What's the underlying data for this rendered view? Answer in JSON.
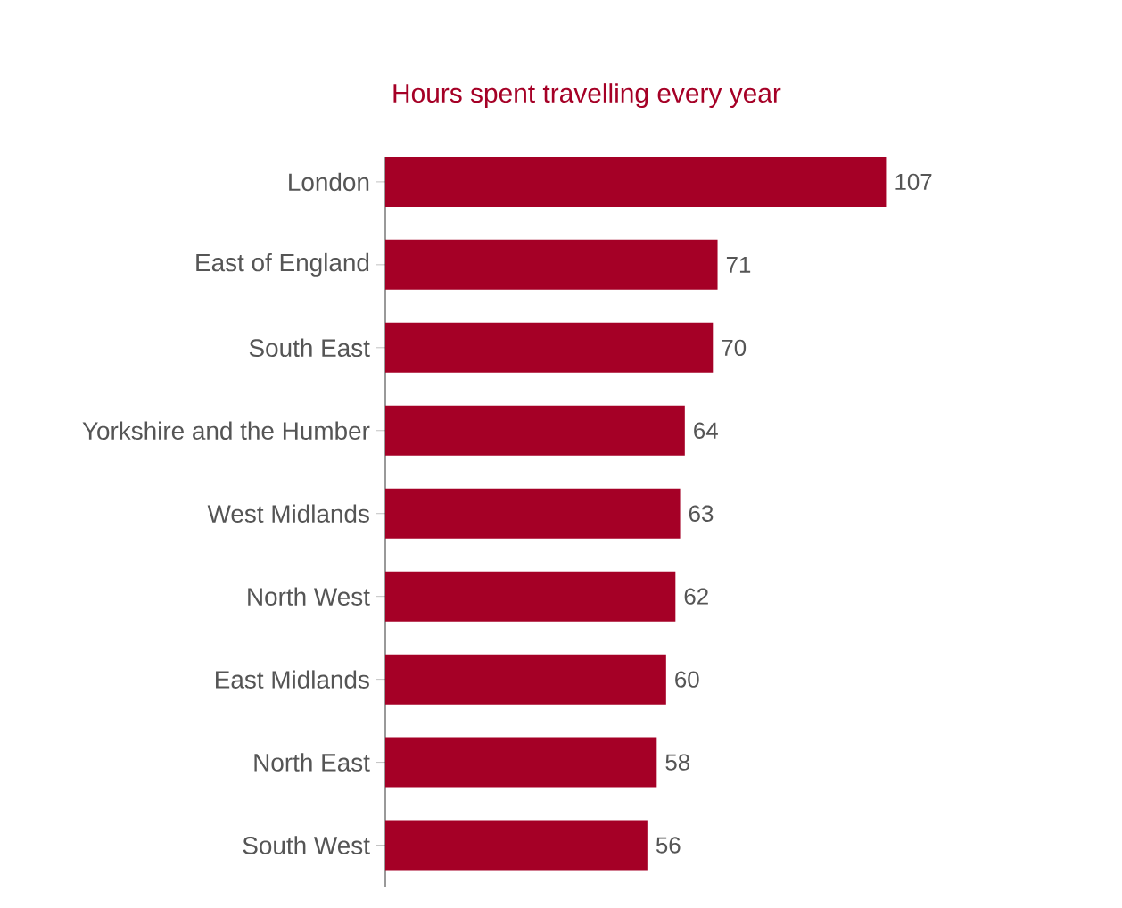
{
  "chart_data": {
    "type": "bar",
    "orientation": "horizontal",
    "title": "Hours spent travelling every year",
    "categories": [
      "London",
      "East of England",
      "South East",
      "Yorkshire and the Humber",
      "West Midlands",
      "North West",
      "East Midlands",
      "North East",
      "South West"
    ],
    "values": [
      107,
      71,
      70,
      64,
      63,
      62,
      60,
      58,
      56
    ],
    "color": "#a50026",
    "data_labels": true,
    "tick_labels": "y"
  }
}
